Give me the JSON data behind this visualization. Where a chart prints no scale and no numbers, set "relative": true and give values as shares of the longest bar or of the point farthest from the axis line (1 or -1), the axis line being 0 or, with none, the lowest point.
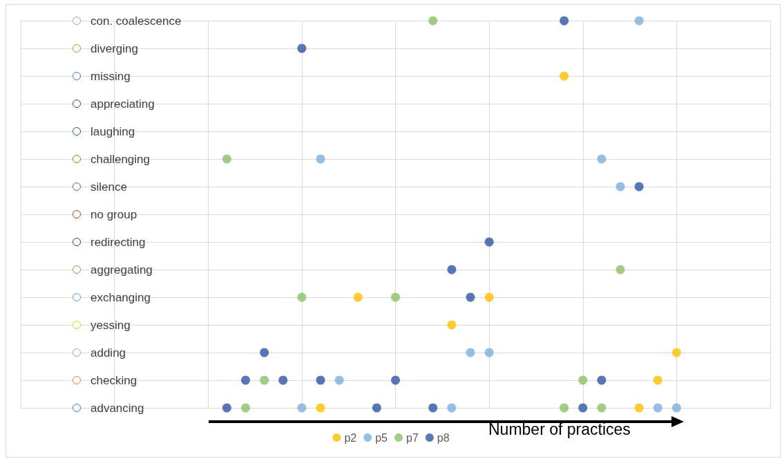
{
  "chart_data": {
    "type": "scatter",
    "orientation": "horizontal",
    "relative": true,
    "xlabel": "Number of practices",
    "categories": [
      "con. coalescence",
      "diverging",
      "missing",
      "appreciating",
      "laughing",
      "challenging",
      "silence",
      "no group",
      "redirecting",
      "aggregating",
      "exchanging",
      "yessing",
      "adding",
      "checking",
      "advancing"
    ],
    "series": [
      {
        "name": "p2",
        "color": "#ffc000",
        "x": [
          "missing",
          "exchanging",
          "exchanging",
          "yessing",
          "adding",
          "checking",
          "advancing",
          "advancing"
        ],
        "values": [
          0.76,
          0.32,
          0.6,
          0.52,
          1,
          0.96,
          0.24,
          0.92
        ]
      },
      {
        "name": "p5",
        "color": "#7cafdd",
        "x": [
          "con. coalescence",
          "challenging",
          "challenging",
          "silence",
          "adding",
          "adding",
          "checking",
          "advancing",
          "advancing",
          "advancing",
          "advancing"
        ],
        "values": [
          0.92,
          0.24,
          0.84,
          0.88,
          0.56,
          0.6,
          0.28,
          0.2,
          0.52,
          0.96,
          1
        ]
      },
      {
        "name": "p7",
        "color": "#8cc168",
        "x": [
          "con. coalescence",
          "challenging",
          "aggregating",
          "exchanging",
          "exchanging",
          "checking",
          "checking",
          "advancing",
          "advancing",
          "advancing"
        ],
        "values": [
          0.48,
          0.04,
          0.88,
          0.2,
          0.4,
          0.12,
          0.8,
          0.08,
          0.76,
          0.84
        ]
      },
      {
        "name": "p8",
        "color": "#2f55a4",
        "x": [
          "con. coalescence",
          "diverging",
          "silence",
          "redirecting",
          "aggregating",
          "exchanging",
          "adding",
          "checking",
          "checking",
          "checking",
          "checking",
          "checking",
          "advancing",
          "advancing",
          "advancing",
          "advancing"
        ],
        "values": [
          0.76,
          0.2,
          0.92,
          0.6,
          0.52,
          0.56,
          0.12,
          0.08,
          0.16,
          0.24,
          0.4,
          0.84,
          0.04,
          0.36,
          0.48,
          0.8
        ]
      }
    ],
    "grid": true,
    "legend": "bottom",
    "marker": "circle"
  }
}
